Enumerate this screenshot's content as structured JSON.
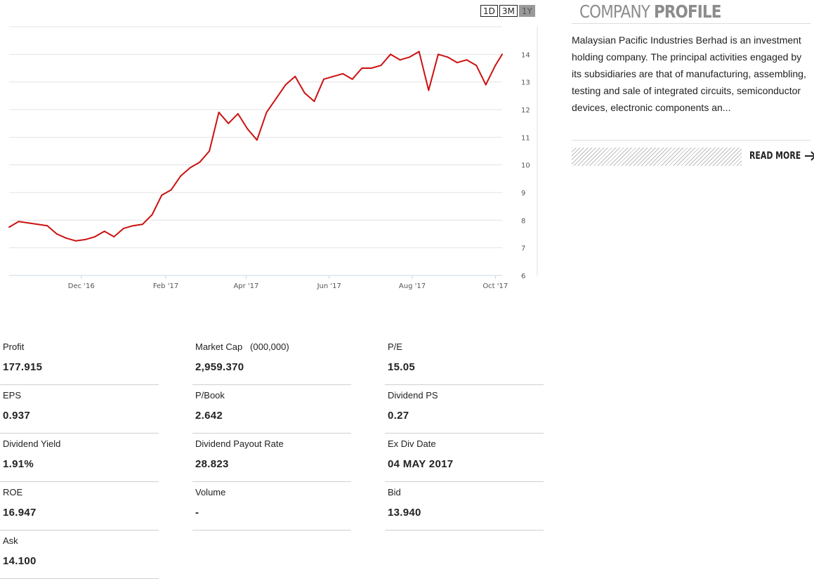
{
  "range_tabs": [
    {
      "label": "1D",
      "active": false
    },
    {
      "label": "3M",
      "active": false
    },
    {
      "label": "1Y",
      "active": true
    }
  ],
  "chart_data": {
    "type": "line",
    "title": "",
    "xlabel": "",
    "ylabel": "",
    "ylim": [
      6,
      15
    ],
    "y_ticks": [
      "6",
      "7",
      "8",
      "9",
      "10",
      "11",
      "12",
      "13",
      "14"
    ],
    "x_ticks": [
      "Dec '16",
      "Feb '17",
      "Apr '17",
      "Jun '17",
      "Aug '17",
      "Oct '17"
    ],
    "x_tick_dates": [
      "2016-12-01",
      "2017-02-01",
      "2017-04-01",
      "2017-06-01",
      "2017-08-01",
      "2017-10-01"
    ],
    "xlim": [
      "2016-10-09",
      "2017-10-06"
    ],
    "grid": true,
    "line_color": "#cc1111",
    "series": [
      {
        "x": [
          "2016-10-09",
          "2016-10-16",
          "2016-10-23",
          "2016-10-30",
          "2016-11-06",
          "2016-11-13",
          "2016-11-20",
          "2016-11-27",
          "2016-12-04",
          "2016-12-11",
          "2016-12-18",
          "2016-12-25",
          "2017-01-01",
          "2017-01-08",
          "2017-01-15",
          "2017-01-22",
          "2017-01-29",
          "2017-02-05",
          "2017-02-12",
          "2017-02-19",
          "2017-02-26",
          "2017-03-05",
          "2017-03-12",
          "2017-03-19",
          "2017-03-26",
          "2017-04-02",
          "2017-04-09",
          "2017-04-16",
          "2017-04-23",
          "2017-04-30",
          "2017-05-07",
          "2017-05-14",
          "2017-05-21",
          "2017-05-28",
          "2017-06-04",
          "2017-06-11",
          "2017-06-18",
          "2017-06-25",
          "2017-07-02",
          "2017-07-09",
          "2017-07-16",
          "2017-07-23",
          "2017-07-30",
          "2017-08-06",
          "2017-08-13",
          "2017-08-20",
          "2017-08-27",
          "2017-09-03",
          "2017-09-10",
          "2017-09-17",
          "2017-09-24",
          "2017-10-01",
          "2017-10-06"
        ],
        "values": [
          7.75,
          7.95,
          7.9,
          7.85,
          7.8,
          7.5,
          7.35,
          7.25,
          7.3,
          7.4,
          7.6,
          7.4,
          7.7,
          7.8,
          7.85,
          8.2,
          8.9,
          9.1,
          9.6,
          9.9,
          10.1,
          10.5,
          11.9,
          11.5,
          11.85,
          11.3,
          10.9,
          11.9,
          12.4,
          12.9,
          13.2,
          12.6,
          12.3,
          13.1,
          13.2,
          13.3,
          13.1,
          13.5,
          13.5,
          13.6,
          14.0,
          13.8,
          13.9,
          14.1,
          12.7,
          14.0,
          13.9,
          13.7,
          13.8,
          13.6,
          12.9,
          13.6,
          14.0
        ]
      }
    ]
  },
  "profile": {
    "title_light": "COMPANY ",
    "title_bold": "PROFILE",
    "description": "Malaysian Pacific Industries Berhad is an investment holding company. The principal activities engaged by its subsidiaries are that of manufacturing, assembling, testing and sale of integrated circuits, semiconductor devices, electronic components an...",
    "read_more_label": "READ MORE"
  },
  "stats": [
    {
      "label": "Profit",
      "value": "177.915"
    },
    {
      "label": "Market Cap   (000,000)",
      "value": "2,959.370"
    },
    {
      "label": "P/E",
      "value": "15.05"
    },
    {
      "label": "EPS",
      "value": "0.937"
    },
    {
      "label": "P/Book",
      "value": "2.642"
    },
    {
      "label": "Dividend PS",
      "value": "0.27"
    },
    {
      "label": "Dividend Yield",
      "value": "1.91%"
    },
    {
      "label": "Dividend Payout Rate",
      "value": "28.823"
    },
    {
      "label": "Ex Div Date",
      "value": "04 MAY 2017"
    },
    {
      "label": "ROE",
      "value": "16.947"
    },
    {
      "label": "Volume",
      "value": "-"
    },
    {
      "label": "Bid",
      "value": "13.940"
    },
    {
      "label": "Ask",
      "value": "14.100"
    }
  ]
}
